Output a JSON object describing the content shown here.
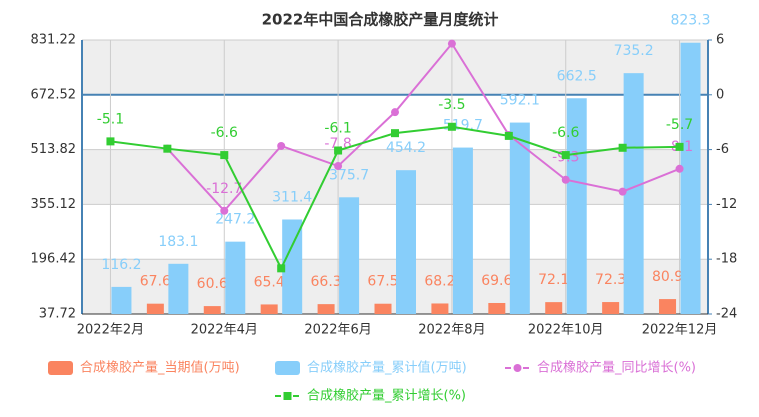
{
  "chart_data": {
    "type": "bar-line",
    "title": "2022年中国合成橡胶产量月度统计",
    "categories": [
      "2022年2月",
      null,
      "2022年4月",
      null,
      "2022年6月",
      null,
      "2022年8月",
      null,
      "2022年10月",
      null,
      "2022年12月"
    ],
    "series": [
      {
        "name": "合成橡胶产量_当期值(万吨)",
        "type": "bar",
        "color": "#fa8460",
        "values": [
          null,
          67.6,
          60.6,
          65.4,
          66.3,
          67.5,
          68.2,
          69.6,
          72.1,
          72.3,
          80.9
        ]
      },
      {
        "name": "合成橡胶产量_累计值(万吨)",
        "type": "bar",
        "color": "#87cefa",
        "values": [
          116.2,
          183.1,
          247.2,
          311.4,
          375.7,
          454.2,
          519.7,
          592.1,
          662.5,
          735.2,
          823.3
        ]
      },
      {
        "name": "合成橡胶产量_同比增长(%)",
        "type": "line",
        "axis": "y2",
        "color": "#da70d6",
        "marker": "circle",
        "values": [
          null,
          -5.9,
          -12.7,
          -5.6,
          -7.8,
          -1.9,
          5.6,
          -4.4,
          -9.3,
          -10.6,
          -8.1
        ],
        "value_labels": [
          null,
          null,
          "-12.7",
          null,
          "-7.8",
          null,
          null,
          null,
          "-9.3",
          null,
          "-8.1"
        ]
      },
      {
        "name": "合成橡胶产量_累计增长(%)",
        "type": "line",
        "axis": "y2",
        "color": "#32cd32",
        "marker": "square",
        "values": [
          -5.1,
          -5.9,
          -6.6,
          -19.0,
          -6.1,
          -4.2,
          -3.5,
          -4.5,
          -6.6,
          -5.8,
          -5.7
        ],
        "value_labels": [
          "-5.1",
          null,
          "-6.6",
          null,
          "-6.1",
          null,
          "-3.5",
          null,
          "-6.6",
          null,
          "-5.7"
        ]
      }
    ],
    "ylim": [
      37.72,
      831.22
    ],
    "yticks": [
      37.72,
      196.42,
      355.12,
      513.82,
      672.52,
      831.22
    ],
    "y2lim": [
      -24,
      6
    ],
    "y2ticks": [
      -24,
      -18,
      -12,
      -6,
      0,
      6
    ],
    "grid": true
  }
}
